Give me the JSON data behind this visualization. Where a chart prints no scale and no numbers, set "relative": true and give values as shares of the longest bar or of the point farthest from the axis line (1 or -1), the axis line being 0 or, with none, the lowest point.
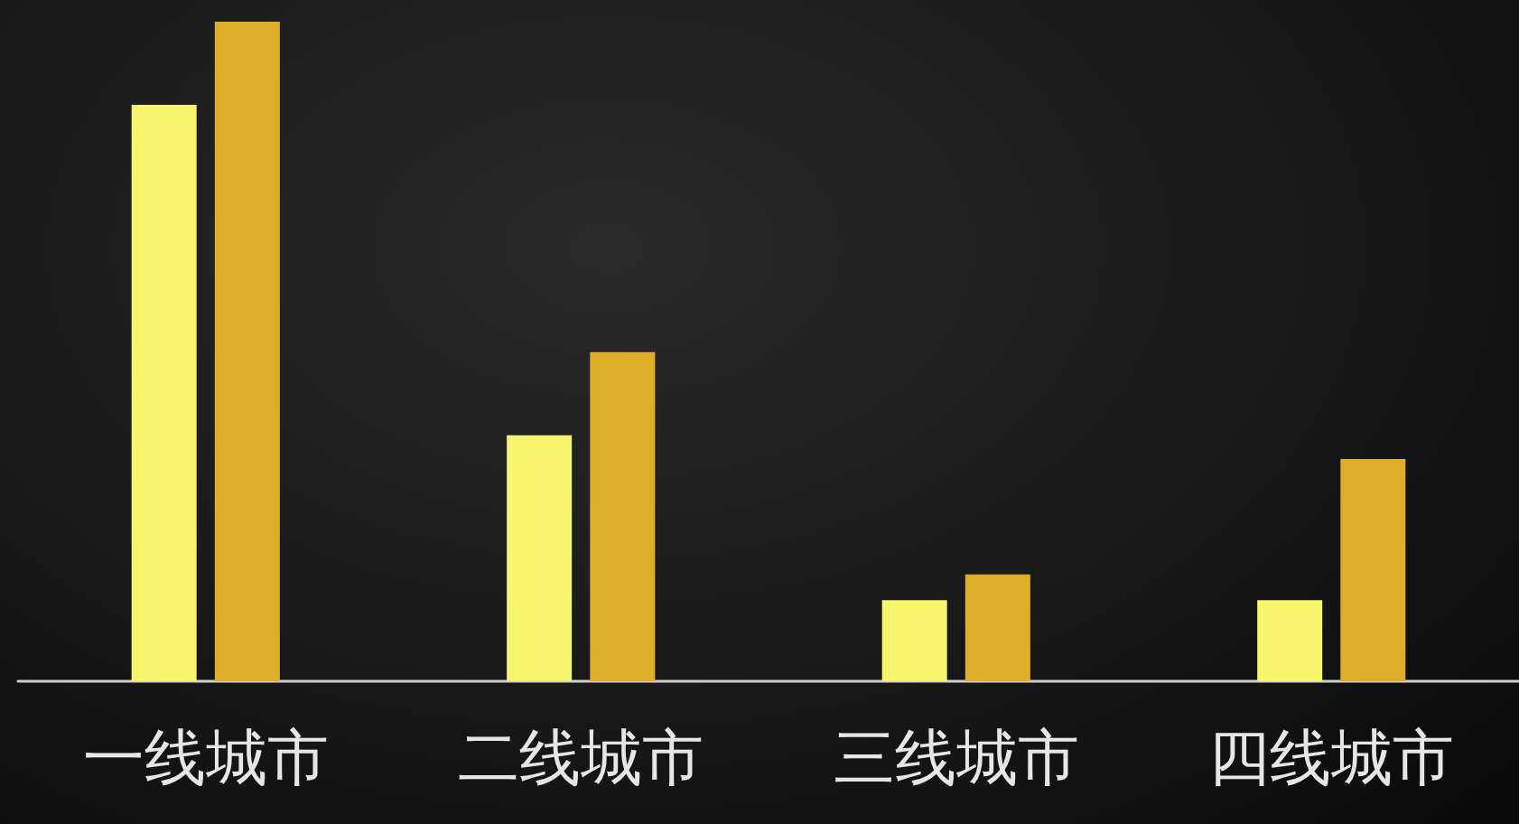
{
  "chart_data": {
    "type": "bar",
    "relative": true,
    "categories": [
      "一线城市",
      "二线城市",
      "三线城市",
      "四线城市"
    ],
    "series": [
      {
        "color": "#f9f46e",
        "values": [
          0.874,
          0.373,
          0.123,
          0.123
        ]
      },
      {
        "color": "#deae28",
        "values": [
          1,
          0.499,
          0.162,
          0.337
        ]
      }
    ]
  }
}
